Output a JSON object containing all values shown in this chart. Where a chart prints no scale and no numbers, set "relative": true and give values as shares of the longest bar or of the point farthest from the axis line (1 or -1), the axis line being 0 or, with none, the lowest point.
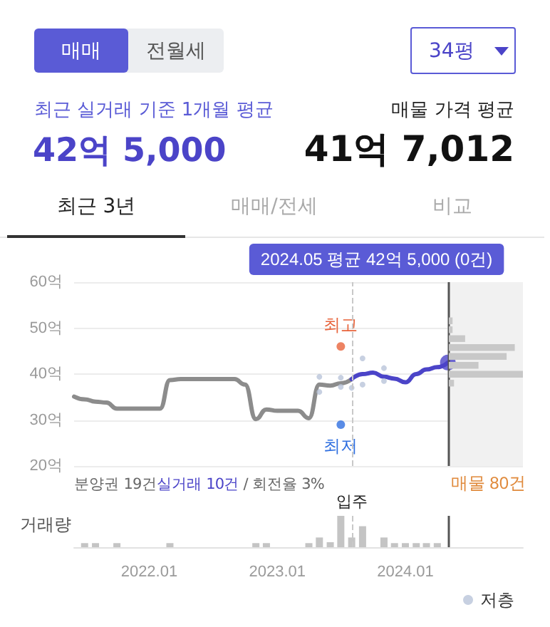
{
  "chart_data": [
    {
      "type": "line",
      "xlim": [
        "2021-06",
        "2024-12"
      ],
      "ylim": [
        20,
        60
      ],
      "yticks": [
        {
          "value": 20,
          "label": "20억"
        },
        {
          "value": 30,
          "label": "30억"
        },
        {
          "value": 40,
          "label": "40억"
        },
        {
          "value": 50,
          "label": "50억"
        },
        {
          "value": 60,
          "label": "60억"
        }
      ],
      "grid": "y",
      "tick_labels": "y",
      "legend": "bottom right",
      "series": [
        {
          "color": "#8c8c8c",
          "x": [
            "2021-06",
            "2021-07",
            "2021-08",
            "2021-09",
            "2021-10",
            "2021-11",
            "2021-12",
            "2022-01",
            "2022-02",
            "2022-03",
            "2022-04",
            "2022-05",
            "2022-06",
            "2022-07",
            "2022-08",
            "2022-09",
            "2022-10",
            "2022-11",
            "2022-12",
            "2023-01",
            "2023-02",
            "2023-03",
            "2023-04",
            "2023-05",
            "2023-06",
            "2023-07",
            "2023-08"
          ],
          "values": [
            35.1,
            34.5,
            34,
            33.8,
            32.5,
            32.5,
            32.5,
            32.5,
            32.5,
            38.7,
            38.9,
            38.9,
            38.9,
            38.9,
            38.9,
            38.9,
            37.7,
            30.2,
            32.3,
            32,
            32,
            32,
            30.4,
            37.7,
            37.5,
            38,
            38.9
          ]
        },
        {
          "color": "#4b44c8",
          "x": [
            "2023-08",
            "2023-09",
            "2023-10",
            "2023-11",
            "2023-12",
            "2024-01",
            "2024-02",
            "2024-03",
            "2024-04",
            "2024-05"
          ],
          "values": [
            38.9,
            40,
            40.3,
            39.4,
            39,
            38.2,
            40,
            41,
            41.5,
            42.5
          ]
        },
        {
          "name": "저층",
          "type": "scatter",
          "color": "#b9c4da",
          "x": [
            "2023-05",
            "2023-05",
            "2023-07",
            "2023-07",
            "2023-08",
            "2023-09",
            "2023-09",
            "2023-11",
            "2023-11"
          ],
          "values": [
            39.4,
            36.1,
            39.2,
            37.2,
            37,
            43.4,
            37.7,
            41.3,
            38.5
          ]
        },
        {
          "type": "scatter",
          "color": "#e8643c",
          "x": [
            "2023-07"
          ],
          "values": [
            46
          ]
        },
        {
          "type": "scatter",
          "color": "#2f6fe0",
          "x": [
            "2023-07"
          ],
          "values": [
            29
          ]
        },
        {
          "type": "scatter",
          "color": "#4b44c8",
          "x": [
            "2024-05"
          ],
          "values": [
            42.5
          ]
        }
      ],
      "ref_lines": [
        {
          "axis": "x",
          "value": "2023-08",
          "line_style": "dashed",
          "color": "#c8c8c8"
        },
        {
          "axis": "x",
          "value": "2024-05",
          "label": "2024.05 평균 42억 5,000 (0건)",
          "color": "#555555"
        }
      ],
      "bands": [
        {
          "axis": "x",
          "from": "2024-05",
          "to": "2024-12",
          "color": "#f1f1f1"
        }
      ],
      "annotations": [
        "매매",
        "전월세",
        "34평",
        "최근 실거래 기준 1개월 평균",
        "42억 5,000",
        "매물 가격 평균",
        "41억 7,012",
        "최근 3년",
        "매매/전세",
        "비교",
        "분양권 19건",
        "실거래 10건",
        "/ 회전율 3%",
        {
          "text": "최고",
          "x": "2023-07",
          "y": 46
        },
        {
          "text": "최저",
          "x": "2023-07",
          "y": 29
        }
      ]
    },
    {
      "type": "bar",
      "relative": true,
      "color": "#c4c4c4",
      "xlim": [
        "2021-06",
        "2024-12"
      ],
      "tick_labels": "x",
      "ylabel": "거래량",
      "xticks": [
        {
          "value": "2022-01",
          "label": "2022.01"
        },
        {
          "value": "2023-01",
          "label": "2023.01"
        },
        {
          "value": "2024-01",
          "label": "2024.01"
        }
      ],
      "x": [
        "2021-07",
        "2021-08",
        "2021-10",
        "2022-03",
        "2022-11",
        "2022-12",
        "2023-04",
        "2023-05",
        "2023-06",
        "2023-07",
        "2023-08",
        "2023-09",
        "2023-11",
        "2023-12",
        "2024-01",
        "2024-02",
        "2024-03",
        "2024-04"
      ],
      "values": [
        0.13,
        0.13,
        0.13,
        0.13,
        0.13,
        0.13,
        0.13,
        0.31,
        0.16,
        1,
        0.31,
        0.67,
        0.31,
        0.13,
        0.13,
        0.13,
        0.13,
        0.13
      ],
      "ref_lines": [
        {
          "axis": "x",
          "value": "2023-08",
          "line_style": "dashed",
          "label": "입주",
          "color": "#c8c8c8"
        },
        {
          "axis": "x",
          "value": "2024-05",
          "color": "#555555"
        }
      ]
    },
    {
      "type": "bar",
      "orientation": "horizontal",
      "relative": true,
      "title": "매물 80건",
      "color": "#c8c8c8",
      "tick_labels": false,
      "categories": [
        null,
        null,
        null,
        null,
        null,
        null,
        null,
        null
      ],
      "values": [
        0.05,
        0.05,
        0.22,
        0.89,
        0.78,
        0.4,
        1,
        0.07
      ]
    }
  ]
}
